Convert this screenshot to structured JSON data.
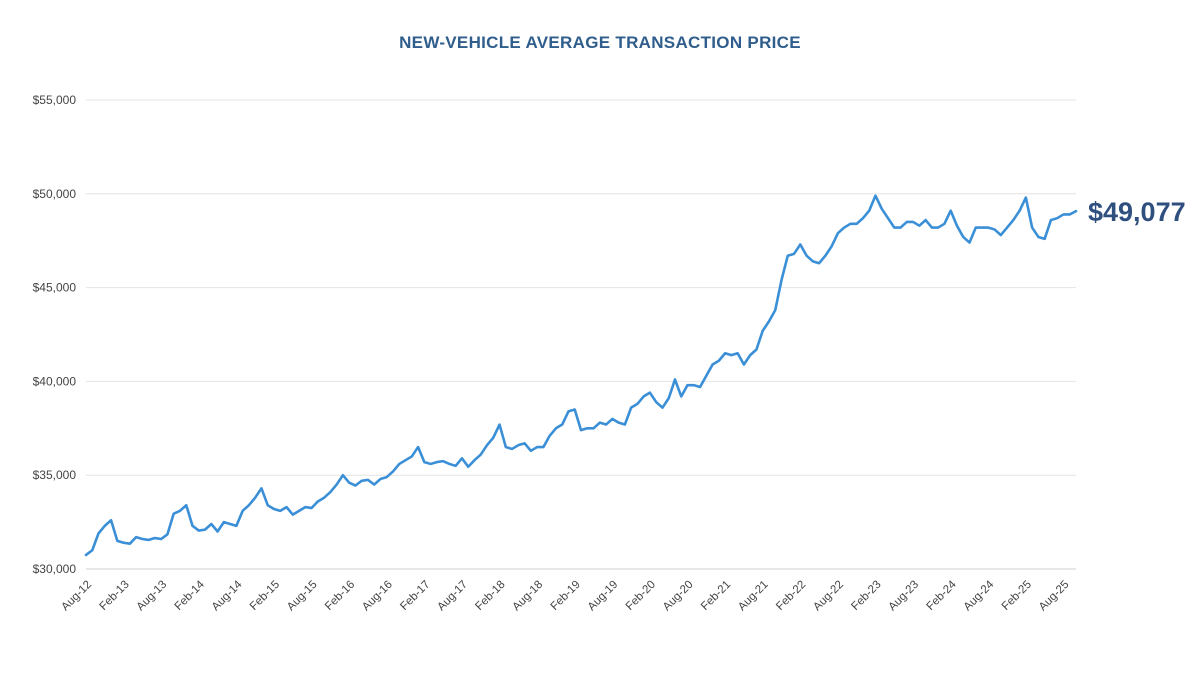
{
  "chart_data": {
    "type": "line",
    "title": "NEW-VEHICLE AVERAGE TRANSACTION PRICE",
    "xlabel": "",
    "ylabel": "",
    "ylim": [
      30000,
      55000
    ],
    "y_ticks": [
      30000,
      35000,
      40000,
      45000,
      50000,
      55000
    ],
    "y_tick_labels": [
      "$30,000",
      "$35,000",
      "$40,000",
      "$45,000",
      "$50,000",
      "$55,000"
    ],
    "x_tick_labels": [
      "Aug-12",
      "Feb-13",
      "Aug-13",
      "Feb-14",
      "Aug-14",
      "Feb-15",
      "Aug-15",
      "Feb-16",
      "Aug-16",
      "Feb-17",
      "Aug-17",
      "Feb-18",
      "Aug-18",
      "Feb-19",
      "Aug-19",
      "Feb-20",
      "Aug-20",
      "Feb-21",
      "Aug-21",
      "Feb-22",
      "Aug-22",
      "Feb-23",
      "Aug-23",
      "Feb-24",
      "Aug-24",
      "Feb-25",
      "Aug-25"
    ],
    "grid": true,
    "line_color": "#3a8fd6",
    "series": [
      {
        "name": "Average Transaction Price",
        "start_month": "Aug-12",
        "values": [
          30750,
          31000,
          31900,
          32300,
          32600,
          31500,
          31400,
          31350,
          31700,
          31600,
          31550,
          31650,
          31600,
          31850,
          32950,
          33100,
          33400,
          32300,
          32050,
          32100,
          32400,
          32000,
          32500,
          32400,
          32300,
          33100,
          33400,
          33800,
          34300,
          33400,
          33200,
          33100,
          33300,
          32900,
          33100,
          33300,
          33250,
          33600,
          33800,
          34100,
          34500,
          35000,
          34600,
          34450,
          34700,
          34750,
          34500,
          34800,
          34900,
          35200,
          35600,
          35800,
          36000,
          36500,
          35700,
          35600,
          35700,
          35750,
          35600,
          35500,
          35900,
          35450,
          35800,
          36100,
          36600,
          37000,
          37700,
          36500,
          36400,
          36600,
          36700,
          36300,
          36500,
          36500,
          37100,
          37500,
          37700,
          38400,
          38500,
          37400,
          37500,
          37500,
          37800,
          37700,
          38000,
          37800,
          37700,
          38600,
          38800,
          39200,
          39400,
          38900,
          38600,
          39100,
          40100,
          39200,
          39800,
          39800,
          39700,
          40300,
          40900,
          41100,
          41500,
          41400,
          41500,
          40900,
          41400,
          41700,
          42700,
          43200,
          43800,
          45400,
          46700,
          46800,
          47300,
          46700,
          46400,
          46300,
          46700,
          47200,
          47900,
          48200,
          48400,
          48400,
          48700,
          49100,
          49900,
          49200,
          48700,
          48200,
          48200,
          48500,
          48500,
          48300,
          48600,
          48200,
          48200,
          48400,
          49100,
          48300,
          47700,
          47400,
          48200,
          48200,
          48200,
          48100,
          47800,
          48200,
          48600,
          49100,
          49800,
          48200,
          47700,
          47600,
          48600,
          48700,
          48900,
          48900,
          49077
        ]
      }
    ],
    "callout_label": "$49,077"
  }
}
